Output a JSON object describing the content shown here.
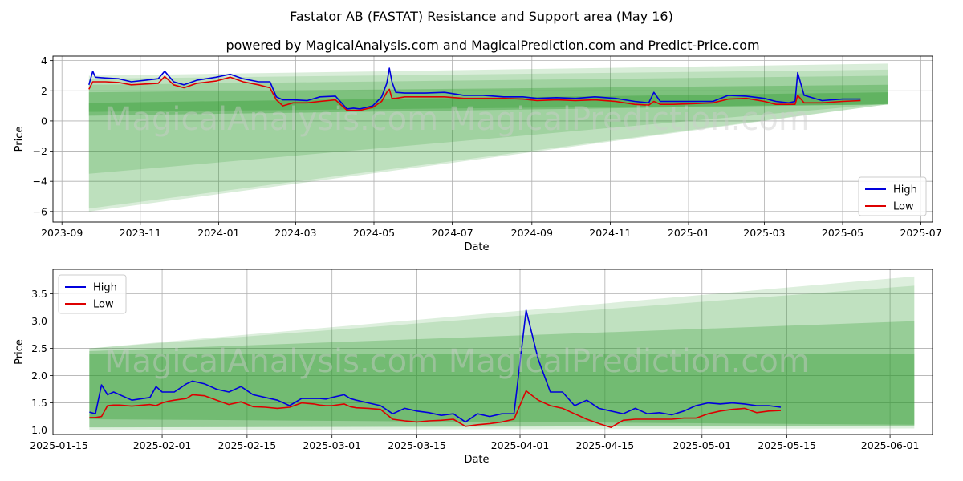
{
  "title": "Fastator AB (FASTAT) Resistance and Support area (May 16)",
  "subtitle": "powered by MagicalAnalysis.com and MagicalPrediction.com and Predict-Price.com",
  "watermark": {
    "top": "MagicalAnalysis.com   MagicalPrediction.com",
    "bottom": "MagicalAnalysis.com   MagicalPrediction.com"
  },
  "colors": {
    "high": "#0000dd",
    "low": "#dd0000",
    "band": "#2e9a2e",
    "grid": "#b0b0b0"
  },
  "chart_data": [
    {
      "type": "line",
      "name": "full-history",
      "xlabel": "Date",
      "ylabel": "Price",
      "xlim": [
        "2023-08-25",
        "2025-07-10"
      ],
      "ylim": [
        -6.7,
        4.3
      ],
      "x_ticks": [
        "2023-09",
        "2023-11",
        "2024-01",
        "2024-03",
        "2024-05",
        "2024-07",
        "2024-09",
        "2024-11",
        "2025-01",
        "2025-03",
        "2025-05",
        "2025-07"
      ],
      "x_tick_dates": [
        "2023-09-01",
        "2023-11-01",
        "2024-01-01",
        "2024-03-01",
        "2024-05-01",
        "2024-07-01",
        "2024-09-01",
        "2024-11-01",
        "2025-01-01",
        "2025-03-01",
        "2025-05-01",
        "2025-07-01"
      ],
      "y_ticks": [
        4,
        2,
        0,
        -2,
        -4,
        -6
      ],
      "y_tick_labels": [
        "4",
        "2",
        "0",
        "−2",
        "−4",
        "−6"
      ],
      "legend": [
        "High",
        "Low"
      ],
      "legend_position": "lower-right",
      "bands": [
        {
          "x": [
            "2023-09-22",
            "2025-06-05"
          ],
          "upper": [
            3.0,
            3.8
          ],
          "lower": [
            -6.0,
            1.1
          ],
          "opacity": 0.18
        },
        {
          "x": [
            "2023-09-22",
            "2025-06-05"
          ],
          "upper": [
            2.8,
            3.4
          ],
          "lower": [
            -5.8,
            1.1
          ],
          "opacity": 0.16
        },
        {
          "x": [
            "2023-09-22",
            "2025-06-05"
          ],
          "upper": [
            2.4,
            3.0
          ],
          "lower": [
            -3.5,
            1.15
          ],
          "opacity": 0.2
        },
        {
          "x": [
            "2023-09-22",
            "2025-06-05"
          ],
          "upper": [
            1.9,
            2.4
          ],
          "lower": [
            0.6,
            1.1
          ],
          "opacity": 0.3
        },
        {
          "x": [
            "2023-09-22",
            "2025-06-05"
          ],
          "upper": [
            1.2,
            1.9
          ],
          "lower": [
            0.35,
            1.1
          ],
          "opacity": 0.35
        }
      ],
      "series": [
        {
          "name": "High",
          "x": [
            "2023-09-22",
            "2023-09-25",
            "2023-09-27",
            "2023-10-05",
            "2023-10-15",
            "2023-10-25",
            "2023-11-05",
            "2023-11-15",
            "2023-11-20",
            "2023-11-27",
            "2023-12-05",
            "2023-12-15",
            "2023-12-30",
            "2024-01-10",
            "2024-01-20",
            "2024-02-01",
            "2024-02-10",
            "2024-02-15",
            "2024-02-20",
            "2024-02-28",
            "2024-03-10",
            "2024-03-20",
            "2024-04-01",
            "2024-04-10",
            "2024-04-15",
            "2024-04-20",
            "2024-04-30",
            "2024-05-07",
            "2024-05-11",
            "2024-05-13",
            "2024-05-15",
            "2024-05-18",
            "2024-05-25",
            "2024-06-10",
            "2024-06-25",
            "2024-07-10",
            "2024-07-25",
            "2024-08-10",
            "2024-08-25",
            "2024-09-05",
            "2024-09-20",
            "2024-10-05",
            "2024-10-20",
            "2024-11-05",
            "2024-11-20",
            "2024-12-01",
            "2024-12-05",
            "2024-12-10",
            "2024-12-20",
            "2025-01-05",
            "2025-01-20",
            "2025-02-01",
            "2025-02-15",
            "2025-03-01",
            "2025-03-10",
            "2025-03-20",
            "2025-03-25",
            "2025-03-27",
            "2025-04-01",
            "2025-04-15",
            "2025-05-01",
            "2025-05-15"
          ],
          "values": [
            2.4,
            3.3,
            2.9,
            2.85,
            2.8,
            2.6,
            2.7,
            2.8,
            3.3,
            2.6,
            2.4,
            2.7,
            2.9,
            3.1,
            2.8,
            2.6,
            2.6,
            1.6,
            1.4,
            1.4,
            1.35,
            1.6,
            1.65,
            0.8,
            0.85,
            0.8,
            1.0,
            1.6,
            2.5,
            3.5,
            2.6,
            1.9,
            1.85,
            1.85,
            1.9,
            1.7,
            1.7,
            1.6,
            1.6,
            1.5,
            1.55,
            1.5,
            1.6,
            1.5,
            1.3,
            1.2,
            1.9,
            1.3,
            1.3,
            1.3,
            1.3,
            1.7,
            1.65,
            1.5,
            1.3,
            1.2,
            1.3,
            3.2,
            1.7,
            1.35,
            1.45,
            1.45
          ]
        },
        {
          "name": "Low",
          "x": [
            "2023-09-22",
            "2023-09-25",
            "2023-09-27",
            "2023-10-05",
            "2023-10-15",
            "2023-10-25",
            "2023-11-05",
            "2023-11-15",
            "2023-11-20",
            "2023-11-27",
            "2023-12-05",
            "2023-12-15",
            "2023-12-30",
            "2024-01-10",
            "2024-01-20",
            "2024-02-01",
            "2024-02-10",
            "2024-02-15",
            "2024-02-20",
            "2024-02-28",
            "2024-03-10",
            "2024-03-20",
            "2024-04-01",
            "2024-04-10",
            "2024-04-15",
            "2024-04-20",
            "2024-04-30",
            "2024-05-07",
            "2024-05-11",
            "2024-05-13",
            "2024-05-15",
            "2024-05-18",
            "2024-05-25",
            "2024-06-10",
            "2024-06-25",
            "2024-07-10",
            "2024-07-25",
            "2024-08-10",
            "2024-08-25",
            "2024-09-05",
            "2024-09-20",
            "2024-10-05",
            "2024-10-20",
            "2024-11-05",
            "2024-11-20",
            "2024-12-01",
            "2024-12-05",
            "2024-12-10",
            "2024-12-20",
            "2025-01-05",
            "2025-01-20",
            "2025-02-01",
            "2025-02-15",
            "2025-03-01",
            "2025-03-10",
            "2025-03-20",
            "2025-03-25",
            "2025-03-27",
            "2025-04-01",
            "2025-04-15",
            "2025-05-01",
            "2025-05-15"
          ],
          "values": [
            2.1,
            2.6,
            2.6,
            2.6,
            2.55,
            2.4,
            2.45,
            2.5,
            2.95,
            2.4,
            2.2,
            2.5,
            2.65,
            2.9,
            2.6,
            2.4,
            2.2,
            1.4,
            1.0,
            1.2,
            1.2,
            1.3,
            1.4,
            0.7,
            0.7,
            0.7,
            0.9,
            1.3,
            1.9,
            2.1,
            1.5,
            1.5,
            1.6,
            1.6,
            1.6,
            1.5,
            1.5,
            1.5,
            1.45,
            1.35,
            1.4,
            1.35,
            1.4,
            1.3,
            1.1,
            1.05,
            1.3,
            1.1,
            1.1,
            1.15,
            1.2,
            1.45,
            1.5,
            1.3,
            1.1,
            1.1,
            1.1,
            1.7,
            1.2,
            1.2,
            1.3,
            1.35
          ]
        }
      ]
    },
    {
      "type": "line",
      "name": "recent-zoom",
      "xlabel": "Date",
      "ylabel": "Price",
      "xlim": [
        "2025-01-14",
        "2025-06-08"
      ],
      "ylim": [
        0.92,
        3.95
      ],
      "x_ticks": [
        "2025-01-15",
        "2025-02-01",
        "2025-02-15",
        "2025-03-01",
        "2025-03-15",
        "2025-04-01",
        "2025-04-15",
        "2025-05-01",
        "2025-05-15",
        "2025-06-01"
      ],
      "x_tick_dates": [
        "2025-01-15",
        "2025-02-01",
        "2025-02-15",
        "2025-03-01",
        "2025-03-15",
        "2025-04-01",
        "2025-04-15",
        "2025-05-01",
        "2025-05-15",
        "2025-06-01"
      ],
      "y_ticks": [
        1.0,
        1.5,
        2.0,
        2.5,
        3.0,
        3.5
      ],
      "y_tick_labels": [
        "1.0",
        "1.5",
        "2.0",
        "2.5",
        "3.0",
        "3.5"
      ],
      "legend": [
        "High",
        "Low"
      ],
      "legend_position": "upper-left",
      "bands": [
        {
          "x": [
            "2025-01-20",
            "2025-06-05"
          ],
          "upper": [
            2.5,
            3.82
          ],
          "lower": [
            1.0,
            1.03
          ],
          "opacity": 0.16
        },
        {
          "x": [
            "2025-01-20",
            "2025-06-05"
          ],
          "upper": [
            2.5,
            3.65
          ],
          "lower": [
            1.05,
            1.08
          ],
          "opacity": 0.16
        },
        {
          "x": [
            "2025-01-20",
            "2025-06-05"
          ],
          "upper": [
            2.45,
            3.0
          ],
          "lower": [
            1.05,
            1.08
          ],
          "opacity": 0.28
        },
        {
          "x": [
            "2025-01-20",
            "2025-06-05"
          ],
          "upper": [
            2.4,
            2.4
          ],
          "lower": [
            1.2,
            1.1
          ],
          "opacity": 0.35
        }
      ],
      "series": [
        {
          "name": "High",
          "x": [
            "2025-01-20",
            "2025-01-21",
            "2025-01-22",
            "2025-01-23",
            "2025-01-24",
            "2025-01-25",
            "2025-01-27",
            "2025-01-30",
            "2025-01-31",
            "2025-02-01",
            "2025-02-02",
            "2025-02-03",
            "2025-02-05",
            "2025-02-06",
            "2025-02-08",
            "2025-02-10",
            "2025-02-12",
            "2025-02-14",
            "2025-02-16",
            "2025-02-18",
            "2025-02-20",
            "2025-02-22",
            "2025-02-24",
            "2025-02-26",
            "2025-02-27",
            "2025-02-28",
            "2025-03-01",
            "2025-03-03",
            "2025-03-04",
            "2025-03-05",
            "2025-03-07",
            "2025-03-09",
            "2025-03-11",
            "2025-03-13",
            "2025-03-15",
            "2025-03-17",
            "2025-03-19",
            "2025-03-21",
            "2025-03-23",
            "2025-03-25",
            "2025-03-27",
            "2025-03-29",
            "2025-03-31",
            "2025-04-02",
            "2025-04-04",
            "2025-04-06",
            "2025-04-08",
            "2025-04-10",
            "2025-04-12",
            "2025-04-14",
            "2025-04-16",
            "2025-04-18",
            "2025-04-20",
            "2025-04-22",
            "2025-04-24",
            "2025-04-26",
            "2025-04-28",
            "2025-04-30",
            "2025-05-02",
            "2025-05-04",
            "2025-05-06",
            "2025-05-08",
            "2025-05-10",
            "2025-05-12",
            "2025-05-14"
          ],
          "values": [
            1.33,
            1.3,
            1.83,
            1.65,
            1.7,
            1.65,
            1.55,
            1.6,
            1.8,
            1.7,
            1.7,
            1.7,
            1.85,
            1.9,
            1.85,
            1.75,
            1.7,
            1.8,
            1.65,
            1.6,
            1.55,
            1.45,
            1.58,
            1.58,
            1.58,
            1.57,
            1.6,
            1.65,
            1.58,
            1.55,
            1.5,
            1.45,
            1.3,
            1.4,
            1.35,
            1.32,
            1.27,
            1.3,
            1.15,
            1.3,
            1.25,
            1.3,
            1.3,
            3.2,
            2.3,
            1.7,
            1.7,
            1.45,
            1.55,
            1.4,
            1.35,
            1.3,
            1.4,
            1.3,
            1.32,
            1.28,
            1.35,
            1.45,
            1.5,
            1.48,
            1.5,
            1.48,
            1.45,
            1.45,
            1.42
          ]
        },
        {
          "name": "Low",
          "x": [
            "2025-01-20",
            "2025-01-21",
            "2025-01-22",
            "2025-01-23",
            "2025-01-24",
            "2025-01-25",
            "2025-01-27",
            "2025-01-30",
            "2025-01-31",
            "2025-02-01",
            "2025-02-02",
            "2025-02-03",
            "2025-02-05",
            "2025-02-06",
            "2025-02-08",
            "2025-02-10",
            "2025-02-12",
            "2025-02-14",
            "2025-02-16",
            "2025-02-18",
            "2025-02-20",
            "2025-02-22",
            "2025-02-24",
            "2025-02-26",
            "2025-02-27",
            "2025-02-28",
            "2025-03-01",
            "2025-03-03",
            "2025-03-04",
            "2025-03-05",
            "2025-03-07",
            "2025-03-09",
            "2025-03-11",
            "2025-03-13",
            "2025-03-15",
            "2025-03-17",
            "2025-03-19",
            "2025-03-21",
            "2025-03-23",
            "2025-03-25",
            "2025-03-27",
            "2025-03-29",
            "2025-03-31",
            "2025-04-02",
            "2025-04-04",
            "2025-04-06",
            "2025-04-08",
            "2025-04-10",
            "2025-04-12",
            "2025-04-14",
            "2025-04-16",
            "2025-04-18",
            "2025-04-20",
            "2025-04-22",
            "2025-04-24",
            "2025-04-26",
            "2025-04-28",
            "2025-04-30",
            "2025-05-02",
            "2025-05-04",
            "2025-05-06",
            "2025-05-08",
            "2025-05-10",
            "2025-05-12",
            "2025-05-14"
          ],
          "values": [
            1.23,
            1.23,
            1.25,
            1.45,
            1.46,
            1.46,
            1.44,
            1.47,
            1.45,
            1.5,
            1.53,
            1.55,
            1.58,
            1.65,
            1.63,
            1.55,
            1.47,
            1.52,
            1.43,
            1.42,
            1.4,
            1.42,
            1.5,
            1.48,
            1.46,
            1.45,
            1.45,
            1.48,
            1.43,
            1.41,
            1.4,
            1.38,
            1.2,
            1.17,
            1.15,
            1.17,
            1.18,
            1.2,
            1.07,
            1.1,
            1.12,
            1.15,
            1.2,
            1.72,
            1.55,
            1.45,
            1.4,
            1.3,
            1.2,
            1.12,
            1.05,
            1.18,
            1.2,
            1.2,
            1.2,
            1.2,
            1.22,
            1.22,
            1.3,
            1.35,
            1.38,
            1.4,
            1.32,
            1.35,
            1.36
          ]
        }
      ]
    }
  ]
}
